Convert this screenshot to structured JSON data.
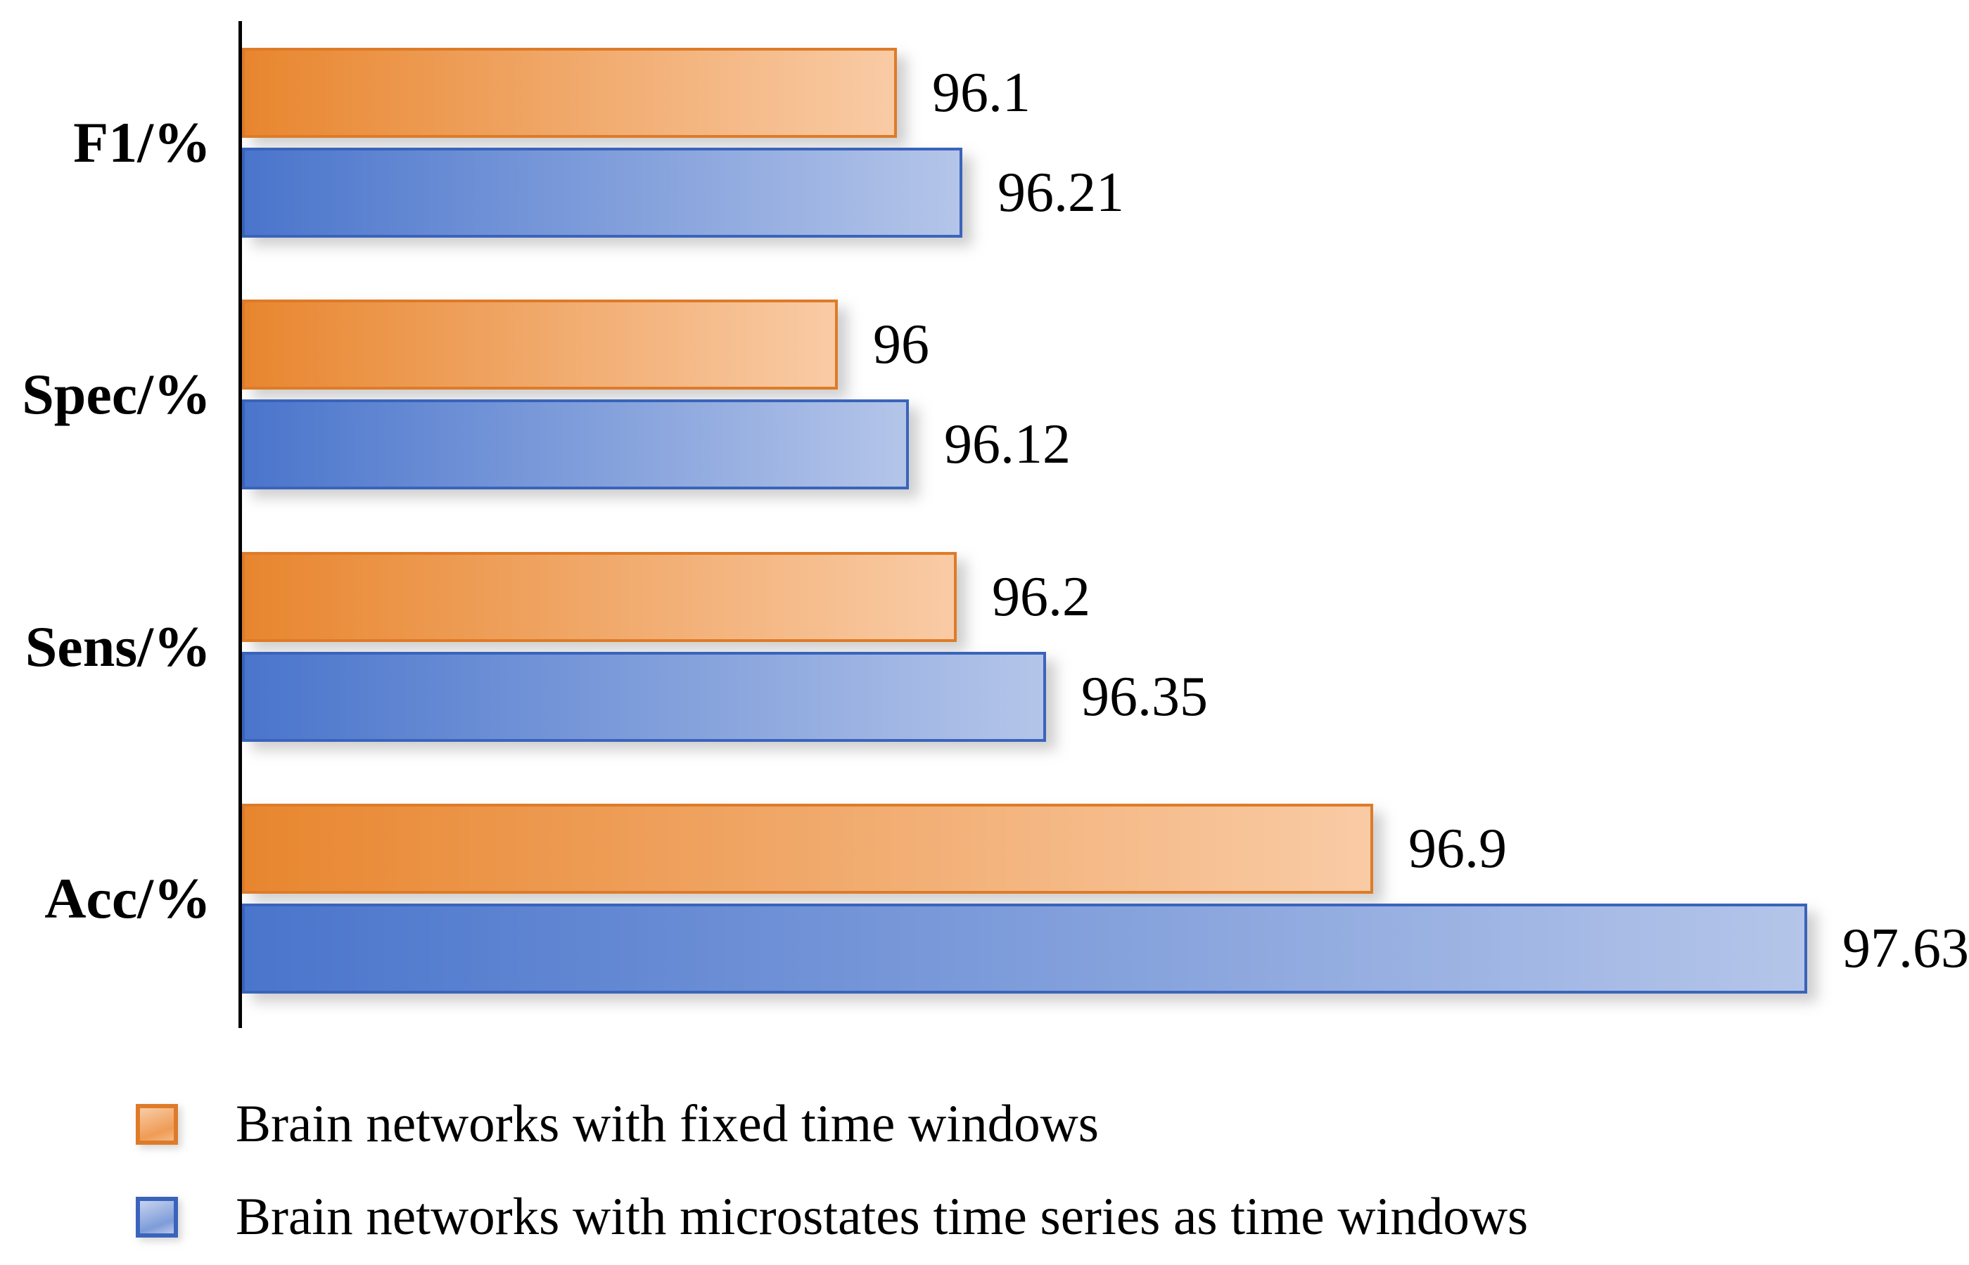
{
  "chart_data": {
    "type": "bar",
    "orientation": "horizontal",
    "title": "",
    "categories": [
      "F1/%",
      "Spec/%",
      "Sens/%",
      "Acc/%"
    ],
    "x_axis": {
      "min": 95,
      "max": 97.9,
      "ticks_visible": false
    },
    "grid": false,
    "legend_position": "bottom-left",
    "series": [
      {
        "name": "Brain networks with fixed time windows",
        "color": "#ED7D31",
        "values": [
          96.1,
          96,
          96.2,
          96.9
        ],
        "value_labels": [
          "96.1",
          "96",
          "96.2",
          "96.9"
        ]
      },
      {
        "name": "Brain networks with microstates time series as time windows",
        "color": "#4472C4",
        "values": [
          96.21,
          96.12,
          96.35,
          97.63
        ],
        "value_labels": [
          "96.21",
          "96.12",
          "96.35",
          "97.63"
        ]
      }
    ]
  },
  "legend": {
    "items": [
      {
        "label": "Brain networks with fixed time windows",
        "swatch": "orange-gradient-square"
      },
      {
        "label": "Brain networks with microstates time series as time windows",
        "swatch": "blue-gradient-square"
      }
    ]
  },
  "colors": {
    "orange_left": "#E8862F",
    "orange_right": "#F9CBA5",
    "orange_border": "#DE7B28",
    "blue_left": "#4A75CC",
    "blue_right": "#B4C5E9",
    "blue_border": "#3A64BB",
    "axis": "#000000",
    "text": "#000000",
    "background": "#FFFFFF"
  }
}
